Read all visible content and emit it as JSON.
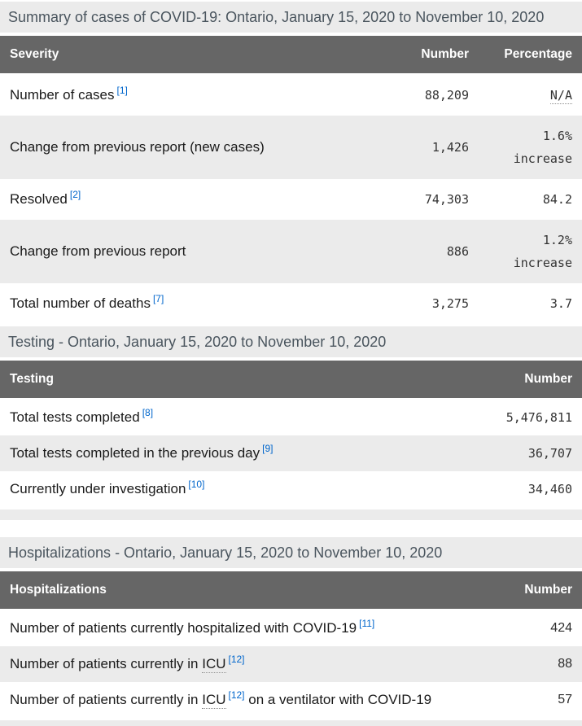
{
  "page": {
    "colors": {
      "table_header_bg": "#666666",
      "table_header_text": "#ffffff",
      "caption_bg": "#ebebeb",
      "zebra_row_bg": "#ebebeb",
      "footnote_link_blue": "#0066cc",
      "body_text": "#1a1a1a",
      "numeric_text": "#333333"
    },
    "tables": [
      {
        "key": "summary",
        "caption": "Summary of cases of COVID-19: Ontario, January 15, 2020 to November 10, 2020",
        "columns": [
          "Severity",
          "Number",
          "Percentage"
        ],
        "rows": [
          {
            "label": [
              {
                "t": "text",
                "v": "Number of cases"
              },
              {
                "t": "fn",
                "v": "[1]"
              }
            ],
            "number": "88,209",
            "pct": [
              {
                "t": "abbr",
                "v": "N/A"
              }
            ]
          },
          {
            "label": [
              {
                "t": "text",
                "v": "Change from previous report (new cases)"
              }
            ],
            "number": "1,426",
            "pct": [
              {
                "t": "text",
                "v": "1.6%"
              },
              {
                "t": "br"
              },
              {
                "t": "text",
                "v": "increase"
              }
            ]
          },
          {
            "label": [
              {
                "t": "text",
                "v": "Resolved"
              },
              {
                "t": "fn",
                "v": "[2]"
              }
            ],
            "number": "74,303",
            "pct": [
              {
                "t": "text",
                "v": "84.2"
              }
            ]
          },
          {
            "label": [
              {
                "t": "text",
                "v": "Change from previous report"
              }
            ],
            "number": "886",
            "pct": [
              {
                "t": "text",
                "v": "1.2%"
              },
              {
                "t": "br"
              },
              {
                "t": "text",
                "v": "increase"
              }
            ]
          },
          {
            "label": [
              {
                "t": "text",
                "v": "Total number of deaths"
              },
              {
                "t": "fn",
                "v": "[7]"
              }
            ],
            "number": "3,275",
            "pct": [
              {
                "t": "text",
                "v": "3.7"
              }
            ]
          }
        ]
      },
      {
        "key": "testing",
        "caption": "Testing - Ontario, January 15, 2020 to November 10, 2020",
        "columns": [
          "Testing",
          "Number"
        ],
        "rows": [
          {
            "label": [
              {
                "t": "text",
                "v": "Total tests completed"
              },
              {
                "t": "fn",
                "v": "[8]"
              }
            ],
            "number": "5,476,811"
          },
          {
            "label": [
              {
                "t": "text",
                "v": "Total tests completed in the previous day"
              },
              {
                "t": "fn",
                "v": "[9]"
              }
            ],
            "number": "36,707"
          },
          {
            "label": [
              {
                "t": "text",
                "v": "Currently under investigation"
              },
              {
                "t": "fn",
                "v": "[10]"
              }
            ],
            "number": "34,460"
          }
        ],
        "tail": true
      },
      {
        "key": "hospitalizations",
        "caption": "Hospitalizations - Ontario, January 15, 2020 to November 10, 2020",
        "columns": [
          "Hospitalizations",
          "Number"
        ],
        "rows": [
          {
            "label": [
              {
                "t": "text",
                "v": "Number of patients currently hospitalized with COVID-19"
              },
              {
                "t": "fn",
                "v": "[11]"
              }
            ],
            "number": "424"
          },
          {
            "label": [
              {
                "t": "text",
                "v": "Number of patients currently in "
              },
              {
                "t": "abbr",
                "v": "ICU"
              },
              {
                "t": "fn",
                "v": "[12]"
              }
            ],
            "number": "88"
          },
          {
            "label": [
              {
                "t": "text",
                "v": "Number of patients currently in "
              },
              {
                "t": "abbr",
                "v": "ICU"
              },
              {
                "t": "fn",
                "v": "[12]"
              },
              {
                "t": "text",
                "v": " on a ventilator with COVID-19"
              }
            ],
            "number": "57"
          }
        ],
        "tail": true
      }
    ]
  }
}
